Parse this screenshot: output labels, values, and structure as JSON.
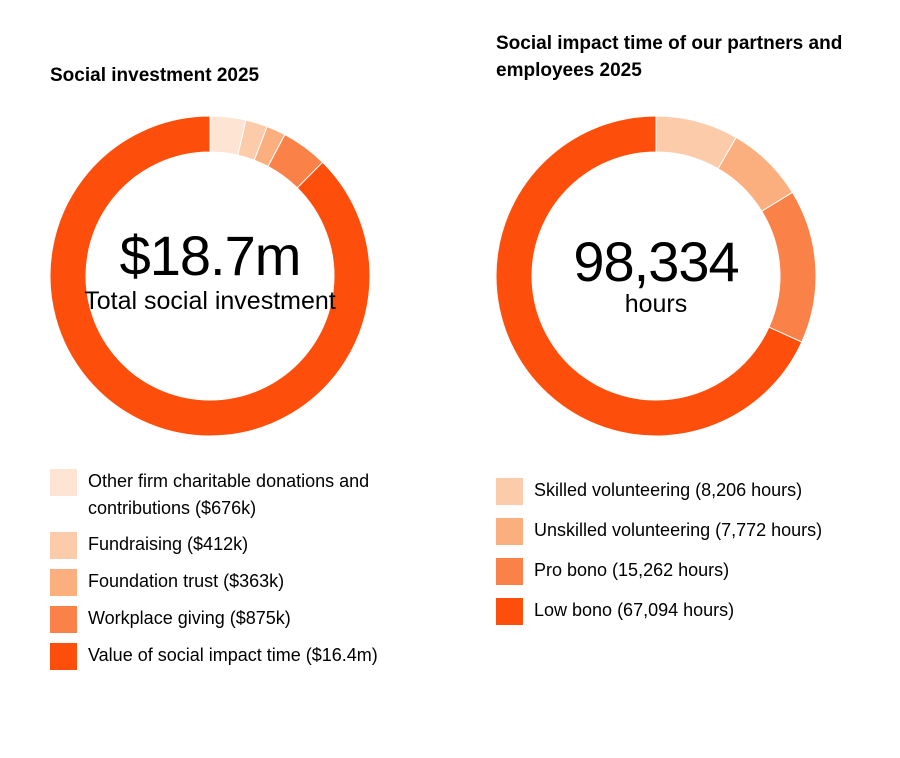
{
  "chart_data": [
    {
      "type": "pie",
      "title": "Social investment 2025",
      "center_value": "$18.7m",
      "center_label": "Total social investment",
      "slices": [
        {
          "label": "Other firm charitable donations and contributions ($676k)",
          "value": 676,
          "color": "#FDE4D3"
        },
        {
          "label": "Fundraising ($412k)",
          "value": 412,
          "color": "#FCCBA9"
        },
        {
          "label": "Foundation trust ($363k)",
          "value": 363,
          "color": "#FCAF7E"
        },
        {
          "label": "Workplace giving ($875k)",
          "value": 875,
          "color": "#FA8147"
        },
        {
          "label": "Value of social impact time ($16.4m)",
          "value": 16400,
          "color": "#FD4F0B"
        }
      ],
      "value_units": "$k",
      "legend_position": "bottom"
    },
    {
      "type": "pie",
      "title": "Social impact time of our partners and employees 2025",
      "center_value": "98,334",
      "center_label": "hours",
      "slices": [
        {
          "label": "Skilled volunteering (8,206 hours)",
          "value": 8206,
          "color": "#FCCBA9"
        },
        {
          "label": "Unskilled volunteering (7,772 hours)",
          "value": 7772,
          "color": "#FCAF7E"
        },
        {
          "label": "Pro bono (15,262 hours)",
          "value": 15262,
          "color": "#FA8147"
        },
        {
          "label": "Low bono (67,094 hours)",
          "value": 67094,
          "color": "#FD4F0B"
        }
      ],
      "value_units": "hours",
      "legend_position": "bottom"
    }
  ]
}
